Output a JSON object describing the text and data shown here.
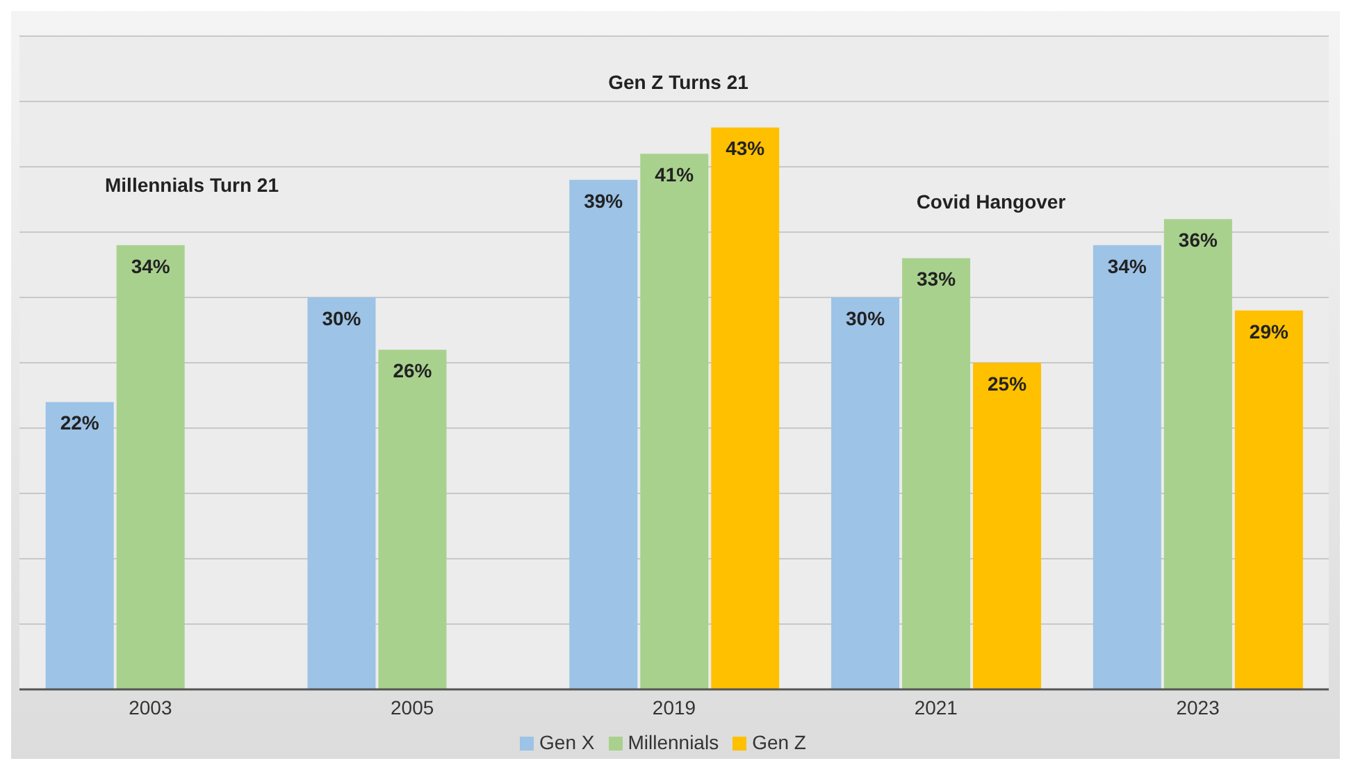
{
  "chart_data": {
    "type": "bar",
    "categories": [
      "2003",
      "2005",
      "2019",
      "2021",
      "2023"
    ],
    "series": [
      {
        "name": "Gen X",
        "color": "#9dc3e6",
        "values": [
          22,
          30,
          39,
          30,
          34
        ],
        "value_labels": [
          "22%",
          "30%",
          "39%",
          "30%",
          "34%"
        ]
      },
      {
        "name": "Millennials",
        "color": "#a9d18e",
        "values": [
          34,
          26,
          41,
          33,
          36
        ],
        "value_labels": [
          "34%",
          "26%",
          "41%",
          "33%",
          "36%"
        ]
      },
      {
        "name": "Gen Z",
        "color": "#ffc000",
        "values": [
          null,
          null,
          43,
          25,
          29
        ],
        "value_labels": [
          null,
          null,
          "43%",
          "25%",
          "29%"
        ]
      }
    ],
    "ylim": [
      0,
      50
    ],
    "yticks": [
      {
        "value": 0,
        "label": null
      },
      {
        "value": 5,
        "label": null
      },
      {
        "value": 10,
        "label": null
      },
      {
        "value": 15,
        "label": null
      },
      {
        "value": 20,
        "label": null
      },
      {
        "value": 25,
        "label": null
      },
      {
        "value": 30,
        "label": null
      },
      {
        "value": 35,
        "label": null
      },
      {
        "value": 40,
        "label": null
      },
      {
        "value": 45,
        "label": null
      },
      {
        "value": 50,
        "label": null
      }
    ],
    "tick_labels": "x",
    "grid": "y",
    "legend": "bottom",
    "annotations": [
      "Millennials Turn 21",
      "Gen Z Turns 21",
      "Covid Hangover"
    ]
  }
}
